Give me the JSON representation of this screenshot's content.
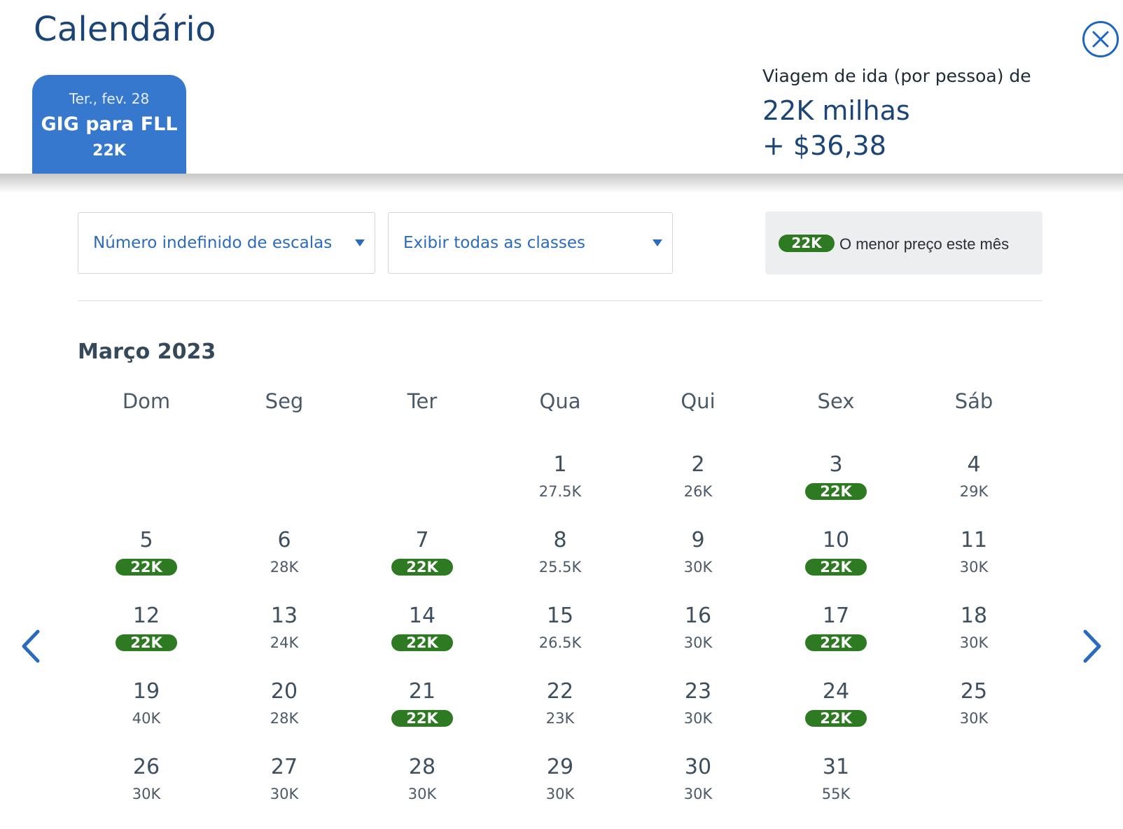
{
  "header": {
    "title": "Calendário",
    "trip_tab": {
      "date": "Ter., fev. 28",
      "route": "GIG para FLL",
      "price": "22K"
    },
    "fare_summary": {
      "label": "Viagem de ida (por pessoa) de",
      "miles": "22K milhas",
      "tax": "+ $36,38"
    }
  },
  "filters": {
    "stops": "Número indefinido de escalas",
    "classes": "Exibir todas as classes"
  },
  "legend": {
    "badge": "22K",
    "text": "O menor preço este mês"
  },
  "calendar": {
    "month": "Março 2023",
    "weekdays": [
      "Dom",
      "Seg",
      "Ter",
      "Qua",
      "Qui",
      "Sex",
      "Sáb"
    ],
    "first_weekday_index": 3,
    "days": [
      {
        "day": "1",
        "price": "27.5K",
        "lowest": false
      },
      {
        "day": "2",
        "price": "26K",
        "lowest": false
      },
      {
        "day": "3",
        "price": "22K",
        "lowest": true
      },
      {
        "day": "4",
        "price": "29K",
        "lowest": false
      },
      {
        "day": "5",
        "price": "22K",
        "lowest": true
      },
      {
        "day": "6",
        "price": "28K",
        "lowest": false
      },
      {
        "day": "7",
        "price": "22K",
        "lowest": true
      },
      {
        "day": "8",
        "price": "25.5K",
        "lowest": false
      },
      {
        "day": "9",
        "price": "30K",
        "lowest": false
      },
      {
        "day": "10",
        "price": "22K",
        "lowest": true
      },
      {
        "day": "11",
        "price": "30K",
        "lowest": false
      },
      {
        "day": "12",
        "price": "22K",
        "lowest": true
      },
      {
        "day": "13",
        "price": "24K",
        "lowest": false
      },
      {
        "day": "14",
        "price": "22K",
        "lowest": true
      },
      {
        "day": "15",
        "price": "26.5K",
        "lowest": false
      },
      {
        "day": "16",
        "price": "30K",
        "lowest": false
      },
      {
        "day": "17",
        "price": "22K",
        "lowest": true
      },
      {
        "day": "18",
        "price": "30K",
        "lowest": false
      },
      {
        "day": "19",
        "price": "40K",
        "lowest": false
      },
      {
        "day": "20",
        "price": "28K",
        "lowest": false
      },
      {
        "day": "21",
        "price": "22K",
        "lowest": true
      },
      {
        "day": "22",
        "price": "23K",
        "lowest": false
      },
      {
        "day": "23",
        "price": "30K",
        "lowest": false
      },
      {
        "day": "24",
        "price": "22K",
        "lowest": true
      },
      {
        "day": "25",
        "price": "30K",
        "lowest": false
      },
      {
        "day": "26",
        "price": "30K",
        "lowest": false
      },
      {
        "day": "27",
        "price": "30K",
        "lowest": false
      },
      {
        "day": "28",
        "price": "30K",
        "lowest": false
      },
      {
        "day": "29",
        "price": "30K",
        "lowest": false
      },
      {
        "day": "30",
        "price": "30K",
        "lowest": false
      },
      {
        "day": "31",
        "price": "55K",
        "lowest": false
      }
    ]
  },
  "icons": {
    "close": "close-circle-icon",
    "prev": "chevron-left-icon",
    "next": "chevron-right-icon",
    "caret": "caret-down-icon"
  },
  "colors": {
    "brand_blue": "#3678cd",
    "title_navy": "#1b4576",
    "link_blue": "#2b6bbd",
    "lowest_green": "#2d7a23"
  }
}
